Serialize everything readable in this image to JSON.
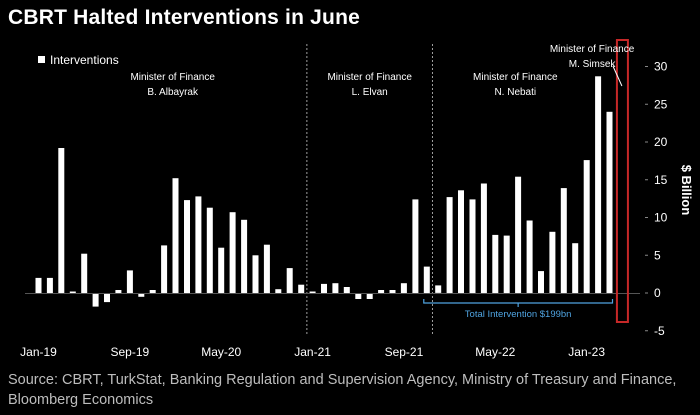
{
  "title": "CBRT Halted Interventions in June",
  "source": "Source: CBRT, TurkStat, Banking Regulation and Supervision Agency, Ministry of Treasury and Finance, Bloomberg Economics",
  "chart_data": {
    "type": "bar",
    "legend": "Interventions",
    "ylabel": "$ Billion",
    "ylim": [
      -5,
      32
    ],
    "yticks": [
      -5,
      0,
      5,
      10,
      15,
      20,
      25,
      30
    ],
    "x_start": "2019-01",
    "xtick_labels": [
      {
        "label": "Jan-19",
        "index": 0
      },
      {
        "label": "Sep-19",
        "index": 8
      },
      {
        "label": "May-20",
        "index": 16
      },
      {
        "label": "Jan-21",
        "index": 24
      },
      {
        "label": "Sep-21",
        "index": 32
      },
      {
        "label": "May-22",
        "index": 40
      },
      {
        "label": "Jan-23",
        "index": 48
      }
    ],
    "values": [
      2,
      2,
      19.2,
      0.2,
      5.2,
      -1.8,
      -1.2,
      0.4,
      3,
      -0.5,
      0.4,
      6.3,
      15.2,
      12.3,
      12.8,
      11.3,
      6,
      10.7,
      9.7,
      5,
      6.4,
      0.5,
      3.3,
      1.1,
      0.2,
      1.2,
      1.3,
      0.8,
      -0.8,
      -0.8,
      0.4,
      0.4,
      1.3,
      12.4,
      3.5,
      1,
      12.7,
      13.6,
      12.4,
      14.5,
      7.7,
      7.6,
      15.4,
      9.6,
      2.9,
      8.1,
      13.9,
      6.6,
      17.6,
      28.7,
      24,
      0
    ],
    "separators_after_index": [
      23,
      34
    ],
    "regimes": [
      {
        "line1": "Minister of Finance",
        "line2": "B. Albayrak"
      },
      {
        "line1": "Minister of Finance",
        "line2": "L. Elvan"
      },
      {
        "line1": "Minister of Finance",
        "line2": "N. Nebati"
      },
      {
        "line1": "Minister of Finance",
        "line2": "M. Simsek"
      }
    ],
    "annotation": {
      "text": "Total Intervention $199bn",
      "from_index": 34,
      "to_index": 50
    },
    "highlight_index": 51,
    "grid": false
  }
}
